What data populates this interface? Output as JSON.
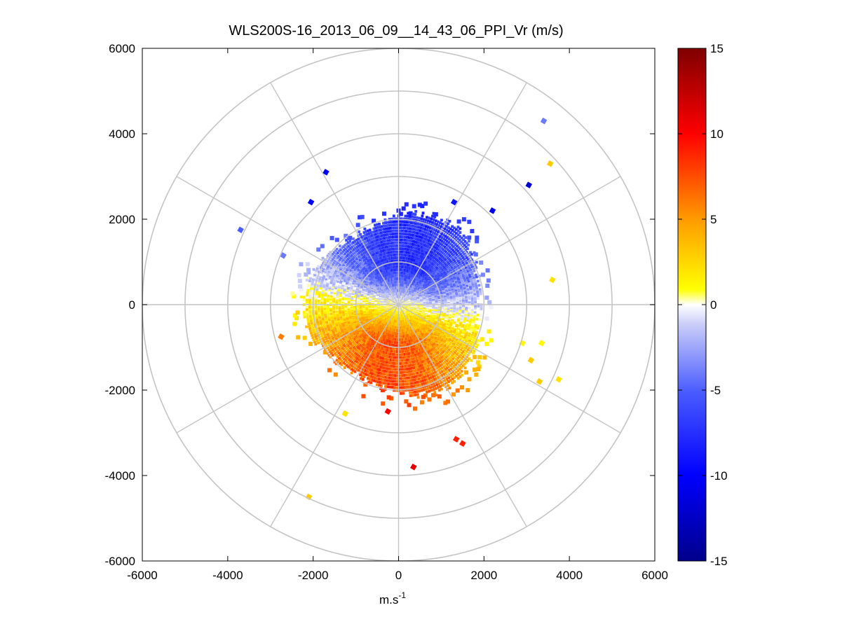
{
  "chart_data": {
    "type": "heatmap",
    "subtype": "polar-ppi-scan",
    "title": "WLS200S-16_2013_06_09__14_43_06_PPI_Vr (m/s)",
    "xlabel": "m.s",
    "xlabel_sup": "-1",
    "ylabel": "",
    "xlim": [
      -6000,
      6000
    ],
    "ylim": [
      -6000,
      6000
    ],
    "x_ticks": [
      -6000,
      -4000,
      -2000,
      0,
      2000,
      4000,
      6000
    ],
    "y_ticks": [
      -6000,
      -4000,
      -2000,
      0,
      2000,
      4000,
      6000
    ],
    "x_tick_labels": [
      "-6000",
      "-4000",
      "-2000",
      "0",
      "2000",
      "4000",
      "6000"
    ],
    "y_tick_labels": [
      "-6000",
      "-4000",
      "-2000",
      "0",
      "2000",
      "4000",
      "6000"
    ],
    "polar_grid": {
      "range_rings": [
        1000,
        2000,
        3000,
        4000,
        5000,
        6000
      ],
      "azimuth_spokes_deg": [
        0,
        30,
        60,
        90,
        120,
        150,
        180,
        210,
        240,
        270,
        300,
        330
      ],
      "grid_color": "#c4c4c4"
    },
    "colorbar": {
      "min": -15,
      "max": 15,
      "ticks": [
        -15,
        -10,
        -5,
        0,
        5,
        10,
        15
      ],
      "tick_labels": [
        "-15",
        "-10",
        "-5",
        "0",
        "5",
        "10",
        "15"
      ],
      "colormap": "blue-white-yellow-red",
      "colors": {
        "min": "#00008b",
        "mid_low": "#0000ff",
        "zero": "#ffffff",
        "mid_high": "#ffff00",
        "orange": "#ff8000",
        "red": "#ff0000",
        "max": "#7f0000"
      }
    },
    "field": {
      "main_range_m": 2000,
      "approaching_sector_deg": [
        -80,
        100
      ],
      "receding_sector_deg": [
        100,
        280
      ],
      "core_velocity_ms": 7.5,
      "note_region_colors": {
        "north": "blue",
        "south": "orange-red"
      }
    },
    "outliers": [
      {
        "x": 3400,
        "y": 4300,
        "v": -4
      },
      {
        "x": 3550,
        "y": 3300,
        "v": 3
      },
      {
        "x": 3050,
        "y": 2800,
        "v": -12
      },
      {
        "x": -1700,
        "y": 3100,
        "v": -10
      },
      {
        "x": 1300,
        "y": 2400,
        "v": -9
      },
      {
        "x": 2200,
        "y": 2200,
        "v": -11
      },
      {
        "x": -3700,
        "y": 1750,
        "v": -5
      },
      {
        "x": 3600,
        "y": 580,
        "v": 2
      },
      {
        "x": 3300,
        "y": -1800,
        "v": 3
      },
      {
        "x": 3750,
        "y": -1750,
        "v": 2
      },
      {
        "x": 3350,
        "y": -900,
        "v": 1
      },
      {
        "x": 3100,
        "y": -1300,
        "v": 3
      },
      {
        "x": 1350,
        "y": -3150,
        "v": 9
      },
      {
        "x": 1500,
        "y": -3250,
        "v": 9
      },
      {
        "x": 350,
        "y": -3800,
        "v": 11
      },
      {
        "x": -2100,
        "y": -4500,
        "v": 3
      },
      {
        "x": -2750,
        "y": -750,
        "v": 6
      },
      {
        "x": -1250,
        "y": -2550,
        "v": 2
      },
      {
        "x": -250,
        "y": -2500,
        "v": 10
      },
      {
        "x": -2050,
        "y": 2400,
        "v": -10
      },
      {
        "x": -2700,
        "y": 1150,
        "v": -4
      },
      {
        "x": 2900,
        "y": -900,
        "v": 1
      }
    ]
  }
}
